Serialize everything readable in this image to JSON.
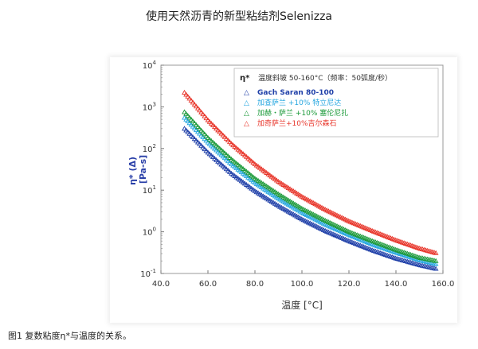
{
  "page": {
    "title": "使用天然沥青的新型粘结剂Selenizza",
    "caption": "图1 复数粘度η*与温度的关系。"
  },
  "chart_data": {
    "type": "scatter",
    "title": "",
    "xlabel": "温度 [°C]",
    "ylabel": "η* (Δ)",
    "ylabel_units": "[Pa-s]",
    "xlim": [
      40,
      160
    ],
    "ylim": [
      0.1,
      10000
    ],
    "yscale": "log",
    "x_ticks": [
      40,
      60,
      80,
      100,
      120,
      140,
      160
    ],
    "x_tick_labels": [
      "40.0",
      "60.0",
      "80.0",
      "100.0",
      "120.0",
      "140.0",
      "160.0"
    ],
    "y_ticks": [
      0.1,
      1,
      10,
      100,
      1000,
      10000
    ],
    "y_tick_labels": [
      {
        "base": "10",
        "exp": "-1"
      },
      {
        "base": "10",
        "exp": "0"
      },
      {
        "base": "10",
        "exp": "1"
      },
      {
        "base": "10",
        "exp": "2"
      },
      {
        "base": "10",
        "exp": "3"
      },
      {
        "base": "10",
        "exp": "4"
      }
    ],
    "marker": "triangle",
    "legend": {
      "placement": "top-right",
      "symbol": "η*",
      "heading": "温度斜坡 50-160°C（频率：50弧度/秒）",
      "marker_glyph": "△"
    },
    "series": [
      {
        "name": "Gach Saran 80-100",
        "color": "#1f3fa8",
        "x": [
          50,
          60,
          70,
          80,
          90,
          100,
          110,
          120,
          130,
          140,
          150,
          157
        ],
        "y": [
          300,
          80,
          25,
          9.5,
          4.2,
          2.0,
          1.05,
          0.6,
          0.36,
          0.23,
          0.16,
          0.13
        ]
      },
      {
        "name": "加查萨兰 +10% 特立尼达",
        "color": "#27a7e0",
        "x": [
          50,
          60,
          70,
          80,
          90,
          100,
          110,
          120,
          130,
          140,
          150,
          157
        ],
        "y": [
          550,
          140,
          42,
          15,
          6.3,
          2.9,
          1.5,
          0.85,
          0.5,
          0.32,
          0.21,
          0.17
        ]
      },
      {
        "name": "加赫・萨兰 +10% 塞伦尼扎",
        "color": "#1c9a3a",
        "x": [
          50,
          60,
          70,
          80,
          90,
          100,
          110,
          120,
          130,
          140,
          150,
          157
        ],
        "y": [
          750,
          180,
          55,
          19,
          8.0,
          3.6,
          1.85,
          1.0,
          0.6,
          0.37,
          0.24,
          0.2
        ]
      },
      {
        "name": "加奇萨兰+10%吉尔森石",
        "color": "#e8362b",
        "x": [
          50,
          60,
          70,
          80,
          90,
          100,
          110,
          120,
          130,
          140,
          150,
          157
        ],
        "y": [
          2200,
          480,
          130,
          42,
          16,
          7.0,
          3.4,
          1.8,
          1.05,
          0.63,
          0.4,
          0.31
        ]
      }
    ]
  }
}
